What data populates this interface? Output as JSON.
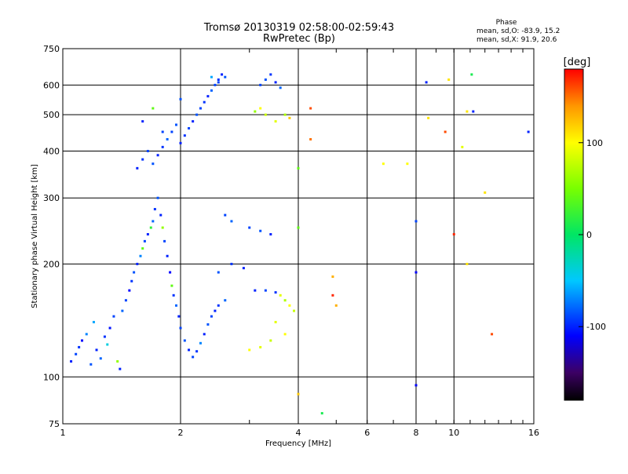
{
  "chart_data": {
    "type": "scatter",
    "title": "Tromsø 20130319 02:58:00-02:59:43",
    "subtitle": "RwPretec (Bp)",
    "xlabel": "Frequency [MHz]",
    "ylabel": "Stationary phase Virtual Height [km]",
    "x_scale": "log",
    "y_scale": "log",
    "xlim": [
      1,
      16
    ],
    "ylim": [
      75,
      750
    ],
    "x_ticks": [
      1,
      2,
      4,
      6,
      8,
      10,
      16
    ],
    "x_tick_labels": [
      "1",
      "2",
      "4",
      "6",
      "8",
      "10",
      "16"
    ],
    "y_ticks": [
      75,
      100,
      200,
      300,
      400,
      500,
      600,
      750
    ],
    "y_tick_labels": [
      "75",
      "100",
      "200",
      "300",
      "400",
      "500",
      "600",
      "750"
    ],
    "grid": true,
    "phase_box": {
      "title": "Phase",
      "line1": "mean, sd,O: -83.9, 15.2",
      "line2": "mean, sd,X:  91.9, 20.6"
    },
    "colorbar": {
      "label": "[deg]",
      "range": [
        -180,
        180
      ],
      "ticks": [
        100,
        0,
        -100
      ],
      "tick_labels": [
        "100",
        "0",
        "-100"
      ],
      "colors": [
        "#000000",
        "#3a0060",
        "#0000ff",
        "#00c8ff",
        "#00ff60",
        "#ffff00",
        "#ff9000",
        "#ff0000"
      ]
    },
    "points": [
      [
        1.05,
        110,
        -100
      ],
      [
        1.08,
        115,
        -90
      ],
      [
        1.1,
        120,
        -95
      ],
      [
        1.12,
        125,
        -110
      ],
      [
        1.15,
        130,
        -70
      ],
      [
        1.18,
        108,
        -85
      ],
      [
        1.2,
        140,
        -60
      ],
      [
        1.22,
        118,
        -100
      ],
      [
        1.25,
        112,
        -80
      ],
      [
        1.28,
        128,
        -95
      ],
      [
        1.3,
        122,
        -40
      ],
      [
        1.32,
        135,
        -105
      ],
      [
        1.35,
        145,
        -90
      ],
      [
        1.38,
        110,
        60
      ],
      [
        1.4,
        105,
        -100
      ],
      [
        1.42,
        150,
        -80
      ],
      [
        1.45,
        160,
        -90
      ],
      [
        1.48,
        170,
        -110
      ],
      [
        1.5,
        180,
        -95
      ],
      [
        1.52,
        190,
        -85
      ],
      [
        1.55,
        200,
        -100
      ],
      [
        1.58,
        210,
        -70
      ],
      [
        1.6,
        220,
        40
      ],
      [
        1.62,
        230,
        -90
      ],
      [
        1.65,
        240,
        -100
      ],
      [
        1.68,
        250,
        20
      ],
      [
        1.7,
        260,
        -80
      ],
      [
        1.72,
        280,
        -95
      ],
      [
        1.75,
        300,
        -85
      ],
      [
        1.78,
        270,
        -100
      ],
      [
        1.8,
        250,
        60
      ],
      [
        1.82,
        230,
        -90
      ],
      [
        1.85,
        210,
        -100
      ],
      [
        1.88,
        190,
        -110
      ],
      [
        1.9,
        175,
        40
      ],
      [
        1.92,
        165,
        -95
      ],
      [
        1.95,
        155,
        -80
      ],
      [
        1.98,
        145,
        -100
      ],
      [
        2.0,
        135,
        -90
      ],
      [
        2.05,
        125,
        -85
      ],
      [
        2.1,
        118,
        -100
      ],
      [
        2.15,
        113,
        -90
      ],
      [
        2.2,
        117,
        -95
      ],
      [
        2.25,
        123,
        -70
      ],
      [
        2.3,
        130,
        -100
      ],
      [
        2.35,
        138,
        -85
      ],
      [
        2.4,
        145,
        -90
      ],
      [
        2.45,
        150,
        -100
      ],
      [
        2.5,
        155,
        -95
      ],
      [
        2.6,
        160,
        -80
      ],
      [
        1.55,
        360,
        -100
      ],
      [
        1.6,
        380,
        -95
      ],
      [
        1.65,
        400,
        -90
      ],
      [
        1.7,
        370,
        -85
      ],
      [
        1.75,
        390,
        -100
      ],
      [
        1.8,
        410,
        -95
      ],
      [
        1.85,
        430,
        -80
      ],
      [
        1.9,
        450,
        -90
      ],
      [
        1.95,
        470,
        -85
      ],
      [
        2.0,
        420,
        -100
      ],
      [
        2.05,
        440,
        -95
      ],
      [
        2.1,
        460,
        -90
      ],
      [
        2.15,
        480,
        -100
      ],
      [
        2.2,
        500,
        -85
      ],
      [
        2.25,
        520,
        -90
      ],
      [
        2.3,
        540,
        -95
      ],
      [
        2.35,
        560,
        -100
      ],
      [
        2.4,
        580,
        -80
      ],
      [
        2.45,
        600,
        -90
      ],
      [
        2.5,
        620,
        -95
      ],
      [
        2.55,
        640,
        -100
      ],
      [
        2.6,
        630,
        -85
      ],
      [
        2.4,
        630,
        -60
      ],
      [
        2.5,
        610,
        -90
      ],
      [
        1.6,
        480,
        -100
      ],
      [
        1.7,
        520,
        40
      ],
      [
        1.8,
        450,
        -90
      ],
      [
        2.0,
        550,
        -85
      ],
      [
        3.2,
        600,
        -90
      ],
      [
        3.3,
        620,
        -85
      ],
      [
        3.4,
        640,
        -95
      ],
      [
        3.5,
        610,
        -100
      ],
      [
        3.6,
        590,
        -80
      ],
      [
        3.1,
        510,
        60
      ],
      [
        3.2,
        520,
        100
      ],
      [
        3.3,
        500,
        80
      ],
      [
        3.5,
        480,
        90
      ],
      [
        3.7,
        500,
        70
      ],
      [
        3.8,
        490,
        120
      ],
      [
        3.1,
        170,
        -100
      ],
      [
        3.3,
        170,
        -90
      ],
      [
        3.5,
        168,
        -95
      ],
      [
        3.6,
        165,
        90
      ],
      [
        3.7,
        160,
        70
      ],
      [
        3.8,
        155,
        100
      ],
      [
        3.9,
        150,
        80
      ],
      [
        3.5,
        140,
        90
      ],
      [
        3.7,
        130,
        100
      ],
      [
        3.4,
        125,
        80
      ],
      [
        3.2,
        120,
        90
      ],
      [
        3.0,
        118,
        100
      ],
      [
        3.0,
        250,
        -90
      ],
      [
        3.2,
        245,
        -85
      ],
      [
        3.4,
        240,
        -100
      ],
      [
        2.7,
        260,
        -80
      ],
      [
        2.6,
        270,
        -90
      ],
      [
        2.7,
        200,
        -95
      ],
      [
        2.9,
        195,
        -100
      ],
      [
        2.5,
        190,
        -85
      ],
      [
        4.3,
        520,
        160
      ],
      [
        4.3,
        430,
        150
      ],
      [
        4.0,
        360,
        40
      ],
      [
        4.0,
        250,
        40
      ],
      [
        4.9,
        185,
        130
      ],
      [
        4.9,
        165,
        170
      ],
      [
        5.0,
        155,
        130
      ],
      [
        4.6,
        80,
        10
      ],
      [
        4.0,
        90,
        120
      ],
      [
        6.6,
        370,
        100
      ],
      [
        7.6,
        370,
        100
      ],
      [
        8.0,
        260,
        -90
      ],
      [
        8.0,
        190,
        -110
      ],
      [
        8.0,
        95,
        -110
      ],
      [
        8.5,
        610,
        -100
      ],
      [
        8.6,
        490,
        110
      ],
      [
        9.5,
        450,
        160
      ],
      [
        9.7,
        620,
        110
      ],
      [
        10.0,
        240,
        170
      ],
      [
        10.5,
        410,
        90
      ],
      [
        10.8,
        510,
        110
      ],
      [
        11.2,
        510,
        -100
      ],
      [
        11.1,
        640,
        10
      ],
      [
        10.8,
        200,
        110
      ],
      [
        12.0,
        310,
        110
      ],
      [
        12.5,
        130,
        160
      ],
      [
        15.5,
        450,
        -100
      ]
    ]
  }
}
